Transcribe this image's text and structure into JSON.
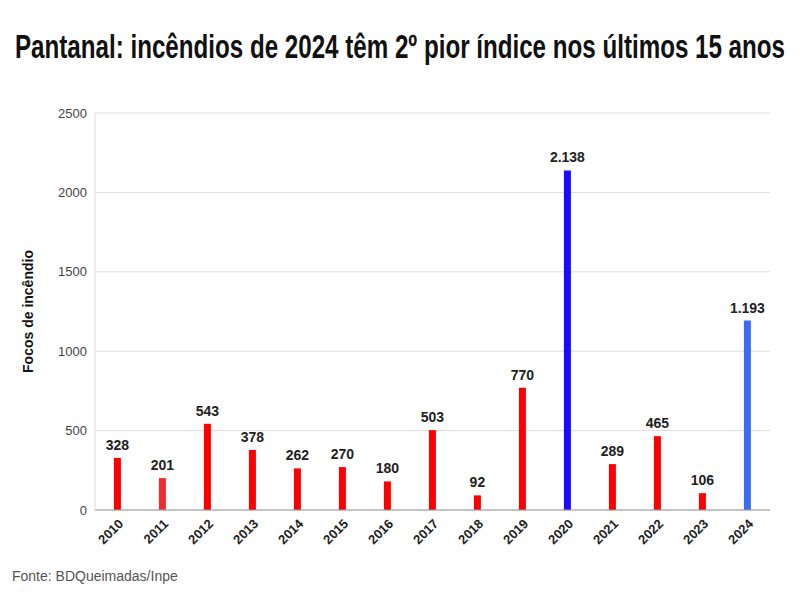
{
  "chart_data": {
    "type": "bar",
    "title": "Pantanal: incêndios de 2024 têm 2º pior índice nos últimos 15 anos",
    "y_label": "Focos de incêndio",
    "source": "Fonte: BDQueimadas/Inpe",
    "categories": [
      "2010",
      "2011",
      "2012",
      "2013",
      "2014",
      "2015",
      "2016",
      "2017",
      "2018",
      "2019",
      "2020",
      "2021",
      "2022",
      "2023",
      "2024"
    ],
    "values": [
      328,
      201,
      543,
      378,
      262,
      270,
      180,
      503,
      92,
      770,
      2138,
      289,
      465,
      106,
      1193
    ],
    "value_labels": [
      "328",
      "201",
      "543",
      "378",
      "262",
      "270",
      "180",
      "503",
      "92",
      "770",
      "2.138",
      "289",
      "465",
      "106",
      "1.193"
    ],
    "colors": [
      "#ff0000",
      "#f02b2b",
      "#ff0000",
      "#ff0000",
      "#ff0000",
      "#ff0000",
      "#ff0000",
      "#ff0000",
      "#ff0000",
      "#ff0000",
      "#1a0dff",
      "#ff0000",
      "#ff0000",
      "#ff0000",
      "#3d6cf2"
    ],
    "ylim": [
      0,
      2500
    ],
    "yticks": [
      0,
      500,
      1000,
      1500,
      2000,
      2500
    ],
    "grid": true,
    "data_labels": true
  }
}
